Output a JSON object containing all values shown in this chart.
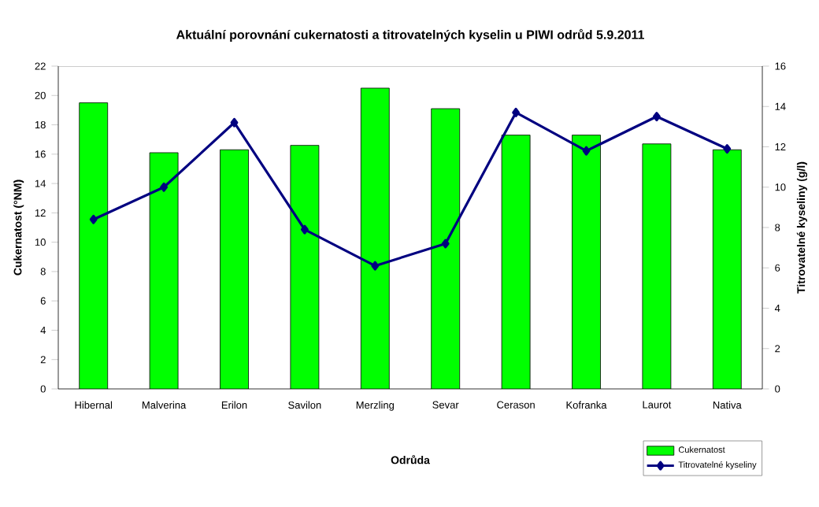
{
  "chart_data": {
    "type": "bar",
    "title": "Aktuální porovnání cukernatosti a titrovatelných kyselin u PIWI odrůd 5.9.2011",
    "xlabel": "Odrůda",
    "ylabel": "Cukernatost (°NM)",
    "y2label": "Titrovatelné kyseliny (g/l)",
    "categories": [
      "Hibernal",
      "Malverina",
      "Erilon",
      "Savilon",
      "Merzling",
      "Sevar",
      "Cerason",
      "Kofranka",
      "Laurot",
      "Nativa"
    ],
    "series": [
      {
        "name": "Cukernatost",
        "color": "#00ff00",
        "values": [
          19.5,
          16.1,
          16.3,
          16.6,
          20.5,
          19.1,
          17.3,
          17.3,
          16.7,
          16.3
        ]
      },
      {
        "name": "Titrovatelné kyseliny",
        "type": "line",
        "axis": "y2",
        "color": "#000080",
        "marker": "diamond",
        "line_style": "solid",
        "values": [
          8.4,
          10.0,
          13.2,
          7.9,
          6.1,
          7.2,
          13.7,
          11.8,
          13.5,
          11.9
        ]
      }
    ],
    "ylim": [
      0,
      22
    ],
    "yticks": [
      0,
      2,
      4,
      6,
      8,
      10,
      12,
      14,
      16,
      18,
      20,
      22
    ],
    "y2lim": [
      0,
      16
    ],
    "y2ticks": [
      0,
      2,
      4,
      6,
      8,
      10,
      12,
      14,
      16
    ],
    "legend": "bottom right",
    "grid": false
  }
}
